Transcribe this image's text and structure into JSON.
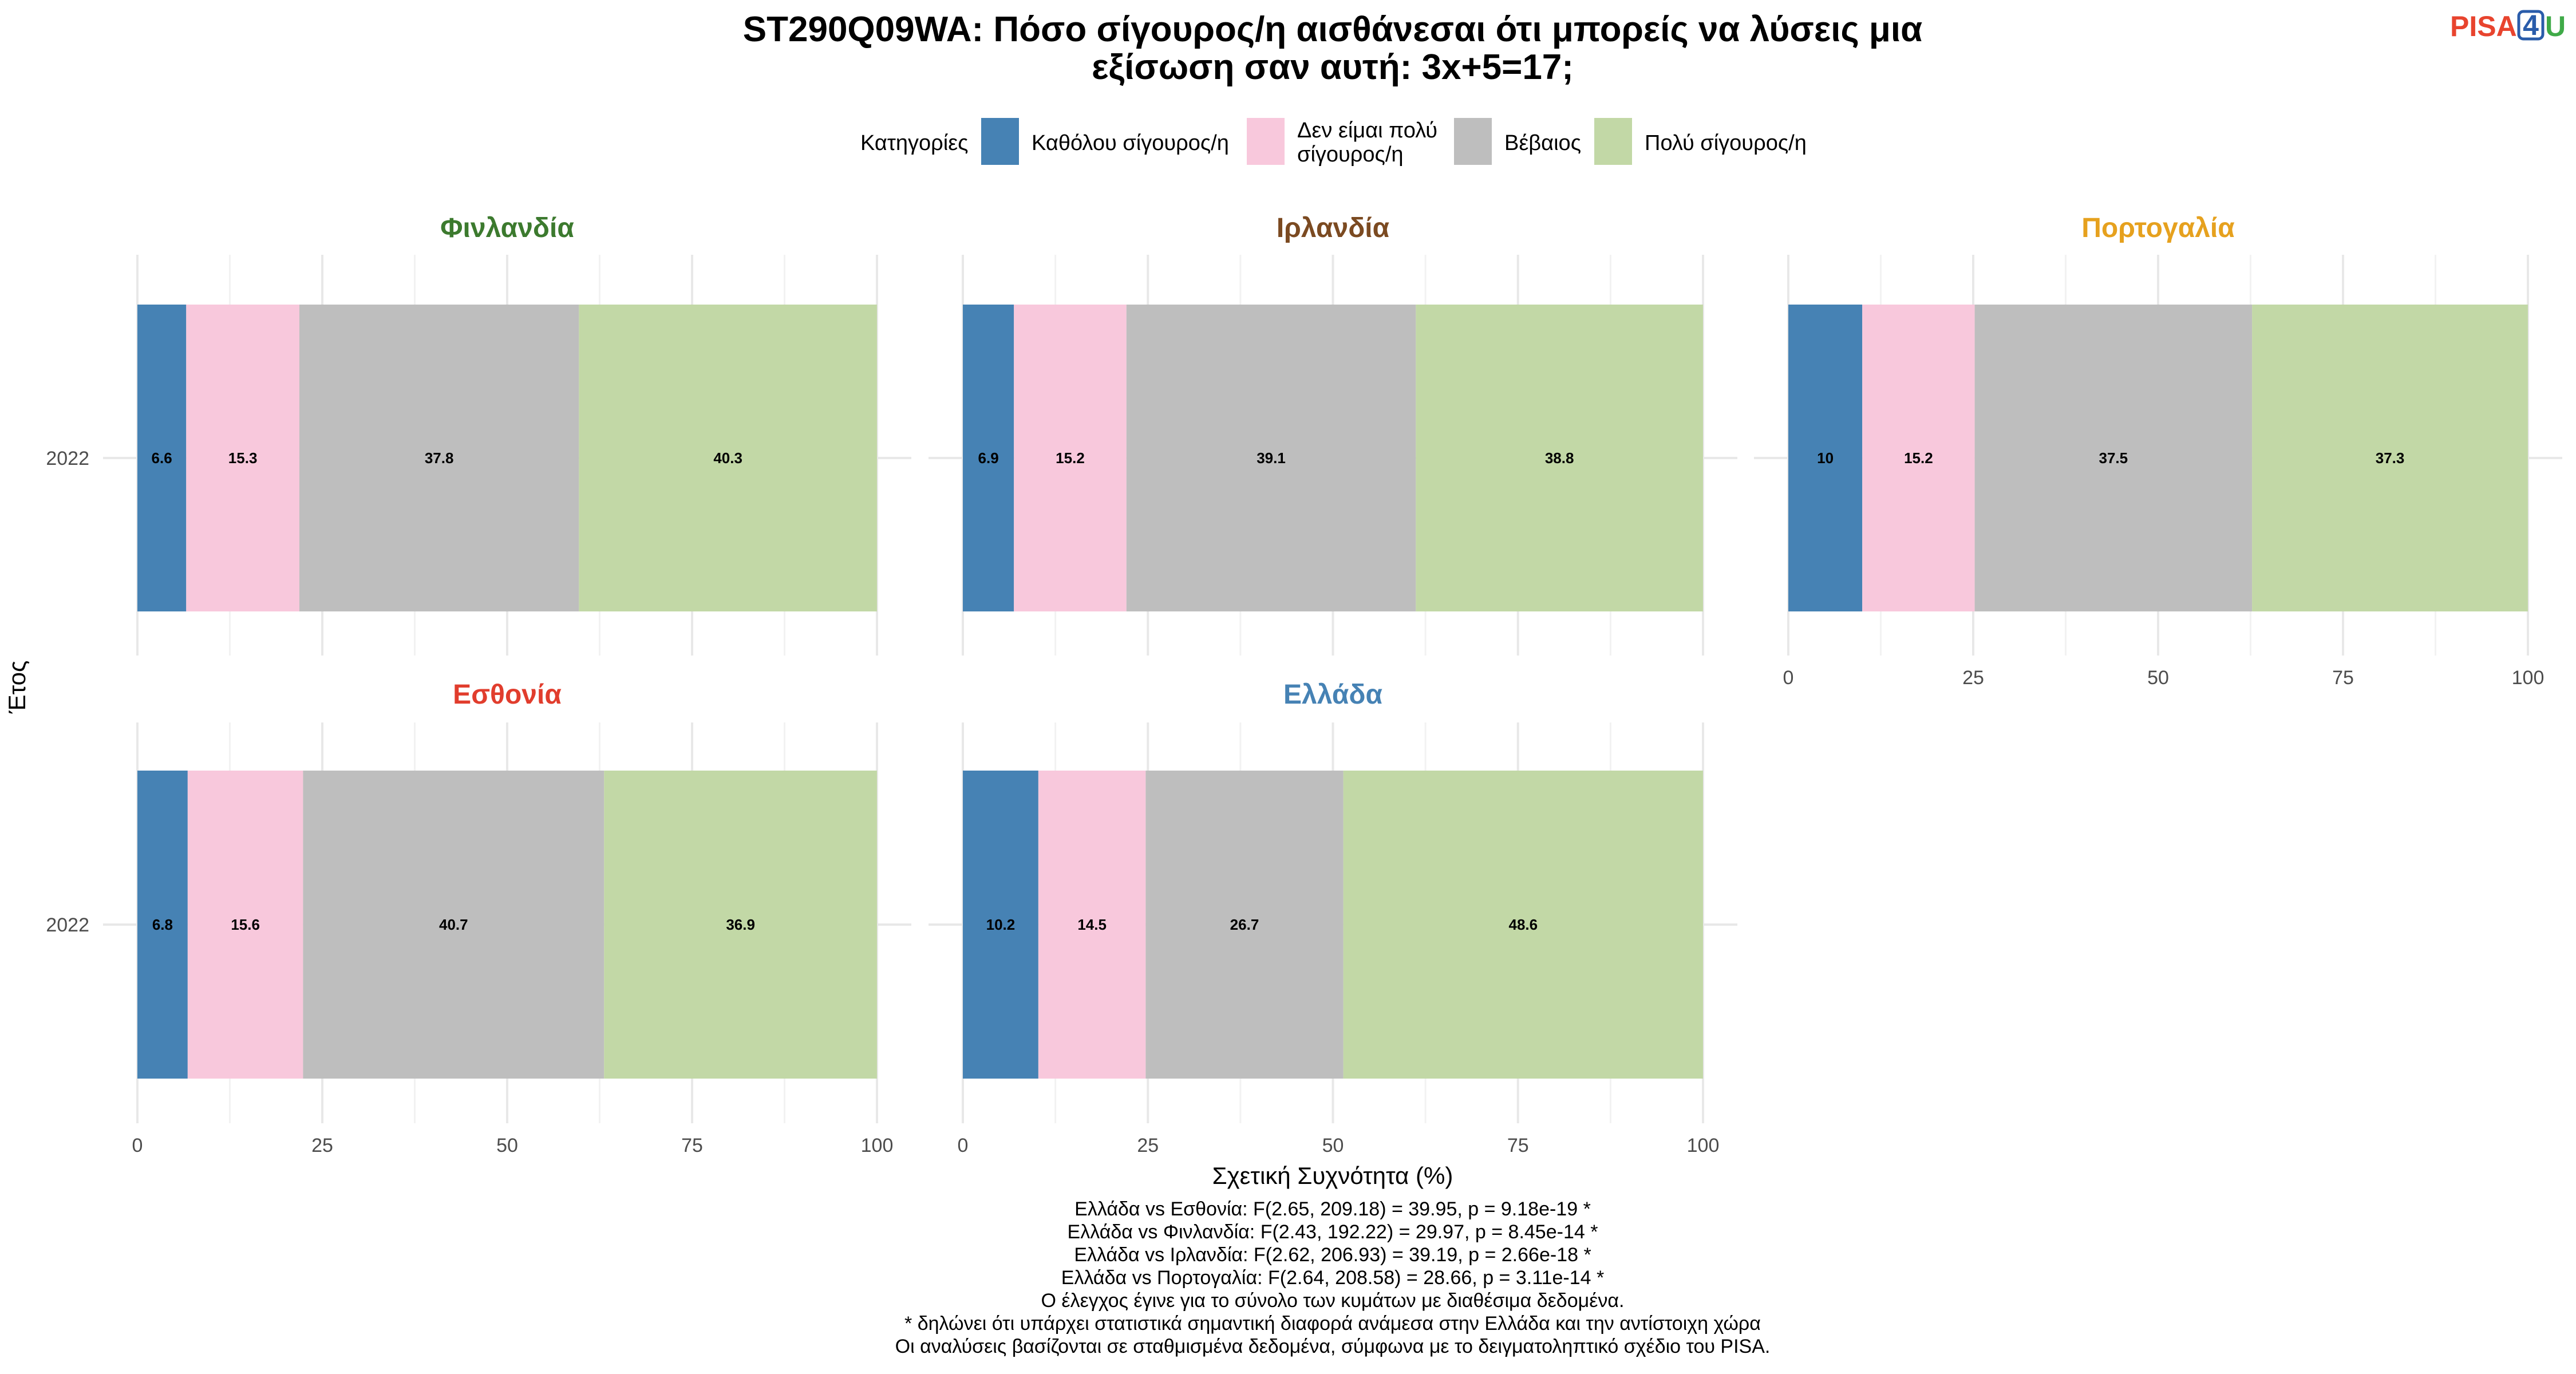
{
  "title_lines": [
    "ST290Q09WA: Πόσο σίγουρος/η αισθάνεσαι ότι μπορείς να λύσεις μια",
    "εξίσωση σαν αυτή: 3x+5=17;"
  ],
  "logo": {
    "pisa": "PISA",
    "four": "4",
    "u": "U"
  },
  "legend": {
    "title": "Κατηγορίες",
    "items": [
      {
        "label_lines": [
          "Καθόλου σίγουρος/η"
        ],
        "color": "#4682B4"
      },
      {
        "label_lines": [
          "Δεν είμαι πολύ",
          "σίγουρος/η"
        ],
        "color": "#F8C8DC"
      },
      {
        "label_lines": [
          "Βέβαιος"
        ],
        "color": "#BEBEBE"
      },
      {
        "label_lines": [
          "Πολύ σίγουρος/η"
        ],
        "color": "#C2D8A6"
      }
    ]
  },
  "chart_data": {
    "type": "bar",
    "orientation": "horizontal",
    "stacked": true,
    "categories": [
      "Καθόλου σίγουρος/η",
      "Δεν είμαι πολύ σίγουρος/η",
      "Βέβαιος",
      "Πολύ σίγουρος/η"
    ],
    "xlabel": "Σχετική Συχνότητα (%)",
    "ylabel": "Έτος",
    "xlim": [
      0,
      100
    ],
    "xticks": [
      0,
      25,
      50,
      75,
      100
    ],
    "grid": true,
    "facets": [
      {
        "name": "Φινλανδία",
        "title_color": "#3C7A2E",
        "year": "2022",
        "values": [
          6.6,
          15.3,
          37.8,
          40.3
        ]
      },
      {
        "name": "Ιρλανδία",
        "title_color": "#7B4A21",
        "year": "2022",
        "values": [
          6.9,
          15.2,
          39.1,
          38.8
        ]
      },
      {
        "name": "Πορτογαλία",
        "title_color": "#E6A11E",
        "year": "2022",
        "values": [
          10,
          15.2,
          37.5,
          37.3
        ]
      },
      {
        "name": "Εσθονία",
        "title_color": "#E13D2D",
        "year": "2022",
        "values": [
          6.8,
          15.6,
          40.7,
          36.9
        ]
      },
      {
        "name": "Ελλάδα",
        "title_color": "#4682B4",
        "year": "2022",
        "values": [
          10.2,
          14.5,
          26.7,
          48.6
        ]
      }
    ]
  },
  "caption_lines": [
    "Ελλάδα vs Εσθονία: F(2.65, 209.18) = 39.95, p = 9.18e-19 *",
    "Ελλάδα vs Φινλανδία: F(2.43, 192.22) = 29.97, p = 8.45e-14 *",
    "Ελλάδα vs Ιρλανδία: F(2.62, 206.93) = 39.19, p = 2.66e-18 *",
    "Ελλάδα vs Πορτογαλία: F(2.64, 208.58) = 28.66, p = 3.11e-14 *",
    "Ο έλεγχος έγινε για το σύνολο των κυμάτων με διαθέσιμα δεδομένα.",
    "* δηλώνει ότι υπάρχει στατιστικά σημαντική διαφορά ανάμεσα στην Ελλάδα και την αντίστοιχη χώρα",
    "Οι αναλύσεις βασίζονται σε σταθμισμένα δεδομένα, σύμφωνα με το δειγματοληπτικό σχέδιο του PISA."
  ]
}
